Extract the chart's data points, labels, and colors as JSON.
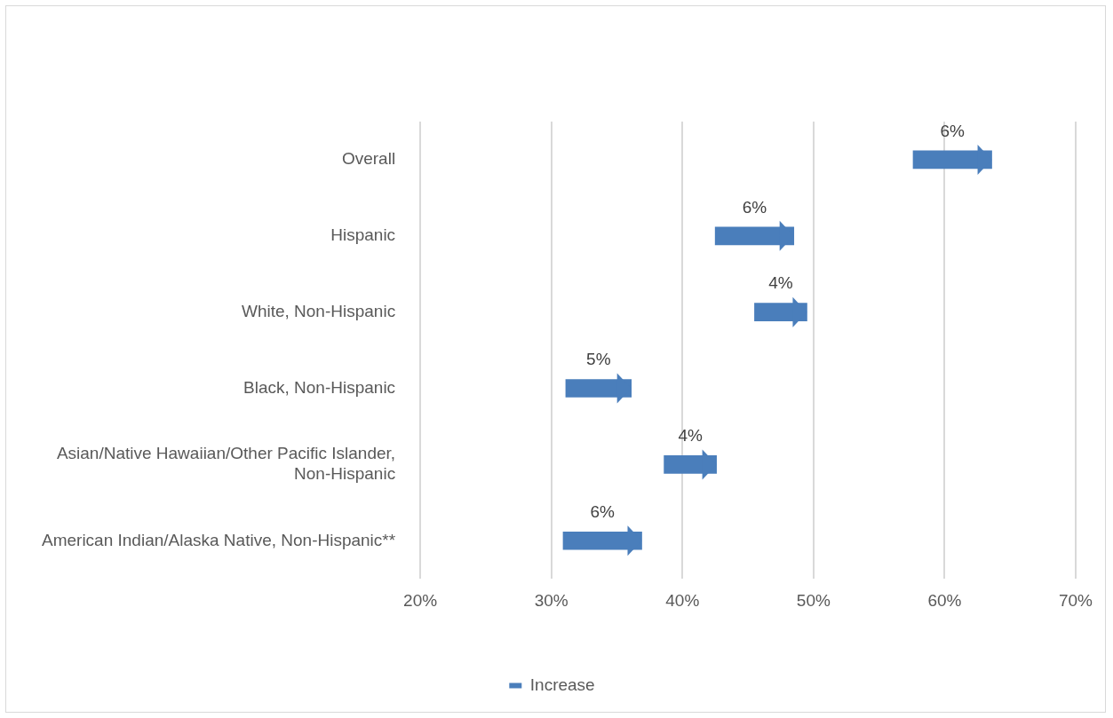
{
  "chart_data": {
    "type": "bar",
    "orientation": "horizontal",
    "categories": [
      "Overall",
      "Hispanic",
      "White, Non-Hispanic",
      "Black, Non-Hispanic",
      "Asian/Native Hawaiian/Other Pacific Islander, Non-Hispanic",
      "American Indian/Alaska Native, Non-Hispanic**"
    ],
    "series": [
      {
        "name": "Increase",
        "color": "#4a7ebb",
        "values": [
          6,
          6,
          4,
          5,
          4,
          6
        ],
        "base": [
          57.6,
          42.5,
          45.5,
          31.1,
          38.6,
          30.9
        ],
        "value_labels": [
          "6%",
          "6%",
          "4%",
          "5%",
          "4%",
          "6%"
        ]
      }
    ],
    "xlim": [
      20,
      70
    ],
    "xticks": [
      {
        "value": 20,
        "label": "20%"
      },
      {
        "value": 30,
        "label": "30%"
      },
      {
        "value": 40,
        "label": "40%"
      },
      {
        "value": 50,
        "label": "50%"
      },
      {
        "value": 60,
        "label": "60%"
      },
      {
        "value": 70,
        "label": "70%"
      }
    ],
    "grid": "x",
    "legend": "bottom"
  }
}
